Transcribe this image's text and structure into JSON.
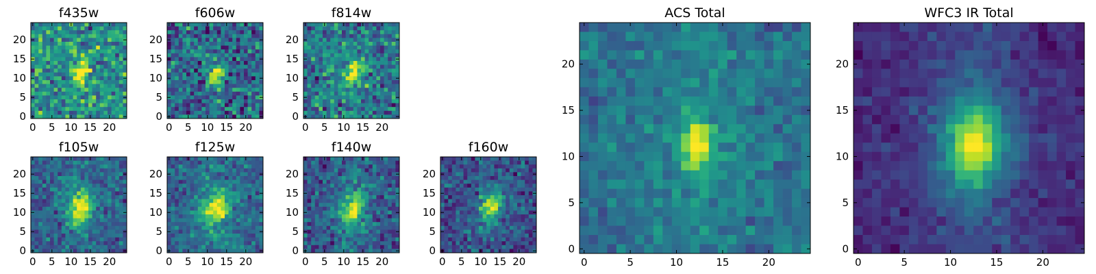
{
  "chart_data": [
    {
      "type": "heatmap",
      "title": "f435w",
      "grid_size": 25,
      "xticks": [
        0,
        5,
        10,
        15,
        20
      ],
      "yticks": [
        0,
        5,
        10,
        15,
        20
      ],
      "xlim": [
        0,
        25
      ],
      "ylim": [
        0,
        25
      ],
      "colormap": "viridis",
      "source": {
        "cx": 12.5,
        "cy": 11,
        "sx": 1.2,
        "sy": 2.2,
        "theta": 0.25,
        "amp": 0.7,
        "halo": 0.0,
        "bg": 0.5,
        "noise": 0.32,
        "seed": 11
      }
    },
    {
      "type": "heatmap",
      "title": "f606w",
      "grid_size": 25,
      "xticks": [
        0,
        5,
        10,
        15,
        20
      ],
      "yticks": [
        0,
        5,
        10,
        15,
        20
      ],
      "xlim": [
        0,
        25
      ],
      "ylim": [
        0,
        25
      ],
      "colormap": "viridis",
      "source": {
        "cx": 12.3,
        "cy": 11,
        "sx": 1.2,
        "sy": 2.1,
        "theta": 0.2,
        "amp": 0.72,
        "halo": 0.0,
        "bg": 0.35,
        "noise": 0.32,
        "seed": 22
      }
    },
    {
      "type": "heatmap",
      "title": "f814w",
      "grid_size": 25,
      "xticks": [
        0,
        5,
        10,
        15,
        20
      ],
      "yticks": [
        0,
        5,
        10,
        15,
        20
      ],
      "xlim": [
        0,
        25
      ],
      "ylim": [
        0,
        25
      ],
      "colormap": "viridis",
      "source": {
        "cx": 12.5,
        "cy": 11,
        "sx": 1.3,
        "sy": 2.3,
        "theta": 0.25,
        "amp": 0.72,
        "halo": 0.04,
        "bg": 0.4,
        "noise": 0.3,
        "seed": 33
      }
    },
    {
      "type": "heatmap",
      "title": "f105w",
      "grid_size": 25,
      "xticks": [
        0,
        5,
        10,
        15,
        20
      ],
      "yticks": [
        0,
        5,
        10,
        15,
        20
      ],
      "xlim": [
        0,
        25
      ],
      "ylim": [
        0,
        25
      ],
      "colormap": "viridis",
      "source": {
        "cx": 12.5,
        "cy": 11,
        "sx": 2.0,
        "sy": 3.0,
        "theta": 0.3,
        "amp": 0.62,
        "halo": 0.12,
        "bg": 0.3,
        "noise": 0.2,
        "seed": 44
      }
    },
    {
      "type": "heatmap",
      "title": "f125w",
      "grid_size": 25,
      "xticks": [
        0,
        5,
        10,
        15,
        20
      ],
      "yticks": [
        0,
        5,
        10,
        15,
        20
      ],
      "xlim": [
        0,
        25
      ],
      "ylim": [
        0,
        25
      ],
      "colormap": "viridis",
      "source": {
        "cx": 12.5,
        "cy": 11,
        "sx": 2.0,
        "sy": 3.0,
        "theta": 0.3,
        "amp": 0.6,
        "halo": 0.12,
        "bg": 0.32,
        "noise": 0.2,
        "seed": 55
      }
    },
    {
      "type": "heatmap",
      "title": "f140w",
      "grid_size": 25,
      "xticks": [
        0,
        5,
        10,
        15,
        20
      ],
      "yticks": [
        0,
        5,
        10,
        15,
        20
      ],
      "xlim": [
        0,
        25
      ],
      "ylim": [
        0,
        25
      ],
      "colormap": "viridis",
      "source": {
        "cx": 12.5,
        "cy": 11,
        "sx": 1.9,
        "sy": 2.9,
        "theta": 0.3,
        "amp": 0.6,
        "halo": 0.12,
        "bg": 0.28,
        "noise": 0.22,
        "seed": 66
      }
    },
    {
      "type": "heatmap",
      "title": "f160w",
      "grid_size": 25,
      "xticks": [
        0,
        5,
        10,
        15,
        20
      ],
      "yticks": [
        0,
        5,
        10,
        15,
        20
      ],
      "xlim": [
        0,
        25
      ],
      "ylim": [
        0,
        25
      ],
      "colormap": "viridis",
      "source": {
        "cx": 12.5,
        "cy": 11,
        "sx": 1.9,
        "sy": 2.8,
        "theta": 0.3,
        "amp": 0.62,
        "halo": 0.1,
        "bg": 0.22,
        "noise": 0.22,
        "seed": 77
      }
    },
    {
      "type": "heatmap",
      "title": "ACS Total",
      "grid_size": 25,
      "xticks": [
        0,
        5,
        10,
        15,
        20
      ],
      "yticks": [
        0,
        5,
        10,
        15,
        20
      ],
      "xlim": [
        0,
        25
      ],
      "ylim": [
        0,
        25
      ],
      "colormap": "viridis",
      "source": {
        "cx": 12.3,
        "cy": 11.3,
        "sx": 1.1,
        "sy": 1.9,
        "theta": 0.05,
        "amp": 0.62,
        "halo": 0.12,
        "bg": 0.36,
        "noise": 0.14,
        "seed": 88
      }
    },
    {
      "type": "heatmap",
      "title": "WFC3 IR Total",
      "grid_size": 25,
      "xticks": [
        0,
        5,
        10,
        15,
        20
      ],
      "yticks": [
        0,
        5,
        10,
        15,
        20
      ],
      "xlim": [
        0,
        25
      ],
      "ylim": [
        0,
        25
      ],
      "colormap": "viridis",
      "source": {
        "cx": 12.5,
        "cy": 11.3,
        "sx": 2.0,
        "sy": 3.0,
        "theta": 0.15,
        "amp": 0.7,
        "halo": 0.2,
        "bg": 0.12,
        "noise": 0.1,
        "seed": 99
      }
    }
  ]
}
